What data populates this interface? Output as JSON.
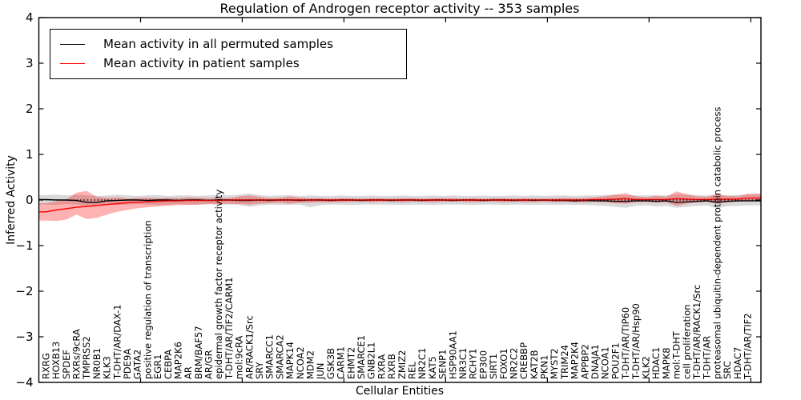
{
  "title": "Regulation of Androgen receptor activity -- 353 samples",
  "legend": {
    "items": [
      {
        "label": "Mean activity in all permuted samples",
        "color": "#000000"
      },
      {
        "label": "Mean activity in patient samples",
        "color": "#ff0000"
      }
    ]
  },
  "colors": {
    "patient_line": "#ff0000",
    "permuted_line": "#000000",
    "patient_band": "#ff0000",
    "permuted_band": "#808080",
    "band_opacity": 0.3
  },
  "chart_data": {
    "type": "line",
    "title": "Regulation of Androgen receptor activity -- 353 samples",
    "xlabel": "Cellular Entities",
    "ylabel": "Inferred Activity",
    "ylim": [
      -4,
      4
    ],
    "yticks": [
      -4,
      -3,
      -2,
      -1,
      0,
      1,
      2,
      3,
      4
    ],
    "grid": false,
    "legend_position": "upper left",
    "zero_reference_line": 0,
    "categories": [
      "RXRG",
      "HOXB13",
      "SPDEF",
      "RXRs/9cRA",
      "TMPRSS2",
      "NR0B1",
      "KLK3",
      "T-DHT/AR/DAX-1",
      "PDE9A",
      "GATA2",
      "positive regulation of transcription",
      "EGR1",
      "CEBPA",
      "MAP2K6",
      "AR",
      "BRM/BAF57",
      "AR/GR",
      "epidermal growth factor receptor activity",
      "T-DHT/AR/TIF2/CARM1",
      "mol:9cRA",
      "AR/RACK1/Src",
      "SRY",
      "SMARCC1",
      "SMARCA2",
      "MAPK14",
      "NCOA2",
      "MDM2",
      "JUN",
      "GSK3B",
      "CARM1",
      "EHMT2",
      "SMARCE1",
      "GNB2L1",
      "RXRA",
      "RXRB",
      "ZMIZ2",
      "REL",
      "NR2C1",
      "KAT5",
      "SENP1",
      "HSP90AA1",
      "NR3C1",
      "RCHY1",
      "EP300",
      "SIRT1",
      "FOXO1",
      "NR2C2",
      "CREBBP",
      "KAT2B",
      "PKN1",
      "MYST2",
      "TRIM24",
      "MAP2K4",
      "APPBP2",
      "DNAJA1",
      "NCOA1",
      "POU2F1",
      "T-DHT/AR/TIP60",
      "T-DHT/AR/Hsp90",
      "KLK2",
      "HDAC1",
      "MAPK8",
      "mol:T-DHT",
      "cell proliferation",
      "T-DHT/AR/RACK1/Src",
      "T-DHT/AR",
      "proteasomal ubiquitin-dependent protein catabolic process",
      "SRC",
      "HDAC7",
      "T-DHT/AR/TIF2"
    ],
    "series": [
      {
        "name": "Mean activity in all permuted samples",
        "color": "#000000",
        "values": [
          0.01,
          0.0,
          0.0,
          -0.01,
          -0.05,
          -0.05,
          -0.02,
          -0.01,
          0.0,
          0.0,
          -0.01,
          0.0,
          0.0,
          -0.01,
          0.0,
          0.0,
          -0.01,
          0.0,
          0.0,
          -0.01,
          -0.01,
          0.0,
          -0.01,
          0.0,
          0.0,
          -0.01,
          0.0,
          0.0,
          -0.01,
          0.0,
          0.0,
          -0.01,
          0.0,
          0.0,
          -0.01,
          0.0,
          0.0,
          -0.01,
          0.0,
          0.0,
          -0.01,
          0.0,
          0.0,
          -0.01,
          0.0,
          0.0,
          -0.01,
          0.0,
          -0.01,
          0.0,
          -0.01,
          -0.01,
          -0.02,
          -0.01,
          -0.02,
          -0.02,
          -0.03,
          -0.03,
          -0.02,
          -0.02,
          -0.03,
          -0.02,
          -0.05,
          -0.04,
          -0.03,
          -0.02,
          -0.05,
          -0.03,
          -0.02,
          -0.02
        ]
      },
      {
        "name": "Mean activity in patient samples",
        "color": "#ff0000",
        "values": [
          -0.26,
          -0.22,
          -0.19,
          -0.16,
          -0.14,
          -0.12,
          -0.1,
          -0.08,
          -0.06,
          -0.05,
          -0.04,
          -0.03,
          -0.02,
          -0.02,
          -0.01,
          -0.01,
          -0.01,
          -0.01,
          0.0,
          0.0,
          0.0,
          0.0,
          0.0,
          0.0,
          0.0,
          0.0,
          0.0,
          0.0,
          0.0,
          0.0,
          0.0,
          0.0,
          0.0,
          0.0,
          0.0,
          0.0,
          0.0,
          0.0,
          0.0,
          0.0,
          0.0,
          0.0,
          0.0,
          0.0,
          0.0,
          0.0,
          0.0,
          0.0,
          0.0,
          0.0,
          0.0,
          0.0,
          0.0,
          0.0,
          0.01,
          0.01,
          0.02,
          0.03,
          0.01,
          0.01,
          0.01,
          0.01,
          0.03,
          0.02,
          0.01,
          0.01,
          0.02,
          0.02,
          0.02,
          0.04
        ]
      }
    ],
    "bands": [
      {
        "name": "permuted samples range",
        "color": "#808080",
        "opacity": 0.3,
        "upper": [
          0.11,
          0.12,
          0.1,
          0.12,
          0.1,
          0.09,
          0.1,
          0.12,
          0.1,
          0.09,
          0.1,
          0.11,
          0.09,
          0.1,
          0.1,
          0.09,
          0.1,
          0.11,
          0.1,
          0.12,
          0.14,
          0.11,
          0.09,
          0.1,
          0.1,
          0.09,
          0.1,
          0.09,
          0.09,
          0.1,
          0.09,
          0.09,
          0.1,
          0.09,
          0.09,
          0.1,
          0.09,
          0.09,
          0.1,
          0.09,
          0.1,
          0.09,
          0.09,
          0.1,
          0.09,
          0.09,
          0.1,
          0.09,
          0.1,
          0.09,
          0.1,
          0.1,
          0.09,
          0.1,
          0.1,
          0.11,
          0.12,
          0.1,
          0.1,
          0.1,
          0.11,
          0.1,
          0.13,
          0.12,
          0.11,
          0.1,
          0.12,
          0.1,
          0.11,
          0.12
        ],
        "lower": [
          -0.1,
          -0.11,
          -0.09,
          -0.1,
          -0.12,
          -0.11,
          -0.1,
          -0.11,
          -0.1,
          -0.09,
          -0.1,
          -0.11,
          -0.1,
          -0.09,
          -0.1,
          -0.1,
          -0.09,
          -0.1,
          -0.1,
          -0.11,
          -0.15,
          -0.12,
          -0.1,
          -0.11,
          -0.1,
          -0.1,
          -0.16,
          -0.11,
          -0.1,
          -0.1,
          -0.11,
          -0.1,
          -0.1,
          -0.1,
          -0.1,
          -0.11,
          -0.1,
          -0.1,
          -0.11,
          -0.1,
          -0.1,
          -0.1,
          -0.11,
          -0.1,
          -0.1,
          -0.11,
          -0.1,
          -0.1,
          -0.11,
          -0.1,
          -0.11,
          -0.1,
          -0.11,
          -0.11,
          -0.12,
          -0.13,
          -0.15,
          -0.17,
          -0.13,
          -0.12,
          -0.14,
          -0.13,
          -0.17,
          -0.15,
          -0.13,
          -0.12,
          -0.18,
          -0.14,
          -0.13,
          -0.12
        ]
      },
      {
        "name": "patient samples range",
        "color": "#ff0000",
        "opacity": 0.3,
        "upper": [
          -0.07,
          -0.03,
          0.01,
          0.16,
          0.2,
          0.07,
          0.05,
          0.06,
          0.03,
          0.05,
          0.05,
          0.04,
          0.05,
          0.04,
          0.06,
          0.05,
          0.04,
          0.05,
          0.04,
          0.08,
          0.1,
          0.07,
          0.04,
          0.05,
          0.08,
          0.05,
          0.04,
          0.04,
          0.03,
          0.04,
          0.04,
          0.03,
          0.04,
          0.04,
          0.03,
          0.04,
          0.04,
          0.03,
          0.04,
          0.04,
          0.04,
          0.03,
          0.04,
          0.03,
          0.04,
          0.04,
          0.03,
          0.04,
          0.04,
          0.03,
          0.04,
          0.05,
          0.04,
          0.05,
          0.06,
          0.08,
          0.12,
          0.15,
          0.08,
          0.06,
          0.09,
          0.07,
          0.19,
          0.13,
          0.08,
          0.07,
          0.13,
          0.09,
          0.08,
          0.14
        ],
        "lower": [
          -0.45,
          -0.46,
          -0.43,
          -0.32,
          -0.42,
          -0.39,
          -0.32,
          -0.26,
          -0.22,
          -0.18,
          -0.16,
          -0.14,
          -0.13,
          -0.11,
          -0.11,
          -0.1,
          -0.09,
          -0.09,
          -0.08,
          -0.09,
          -0.1,
          -0.08,
          -0.07,
          -0.06,
          -0.08,
          -0.06,
          -0.06,
          -0.05,
          -0.05,
          -0.05,
          -0.04,
          -0.04,
          -0.05,
          -0.04,
          -0.04,
          -0.05,
          -0.04,
          -0.04,
          -0.05,
          -0.04,
          -0.04,
          -0.04,
          -0.05,
          -0.04,
          -0.04,
          -0.05,
          -0.04,
          -0.05,
          -0.04,
          -0.04,
          -0.05,
          -0.04,
          -0.05,
          -0.05,
          -0.04,
          -0.05,
          -0.07,
          -0.08,
          -0.05,
          -0.04,
          -0.06,
          -0.05,
          -0.13,
          -0.08,
          -0.05,
          -0.04,
          -0.08,
          -0.05,
          -0.04,
          -0.02
        ]
      }
    ]
  }
}
